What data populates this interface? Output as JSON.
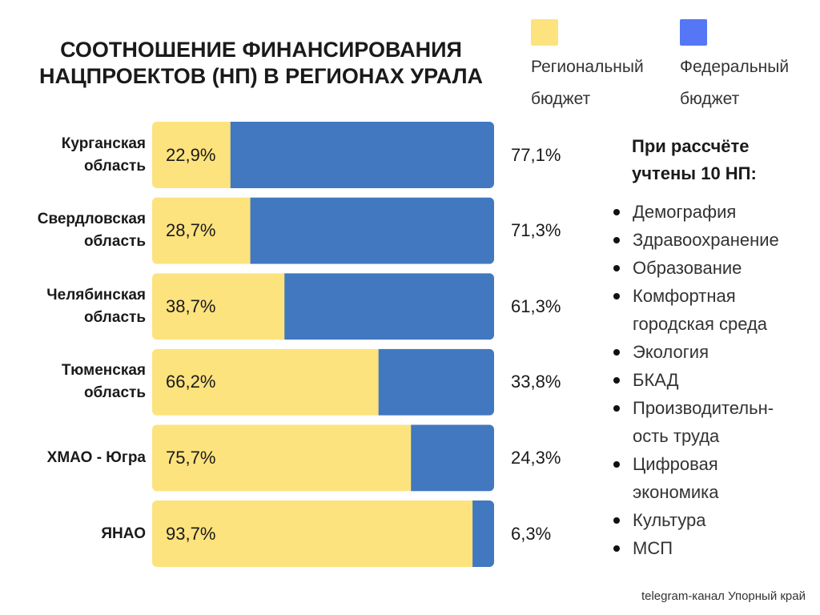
{
  "chart_data": {
    "type": "stacked_bar_horizontal",
    "title": "СООТНОШЕНИЕ ФИНАНСИРОВАНИЯ\nНАЦПРОЕКТОВ (НП) В РЕГИОНАХ УРАЛА",
    "categories": [
      "Курганская\nобласть",
      "Свердловская\nобласть",
      "Челябинская\nобласть",
      "Тюменская\nобласть",
      "ХМАО - Югра",
      "ЯНАО"
    ],
    "series": [
      {
        "name": "Региональный\nбюджет",
        "color": "#fde37e",
        "values": [
          22.9,
          28.7,
          38.7,
          66.2,
          75.7,
          93.7
        ],
        "value_labels": [
          "22,9%",
          "28,7%",
          "38,7%",
          "66,2%",
          "75,7%",
          "93,7%"
        ]
      },
      {
        "name": "Федеральный\nбюджет",
        "color": "#4178c0",
        "values": [
          77.1,
          71.3,
          61.3,
          33.8,
          24.3,
          6.3
        ],
        "value_labels": [
          "77,1%",
          "71,3%",
          "61,3%",
          "33,8%",
          "24,3%",
          "6,3%"
        ]
      }
    ],
    "legend_swatch_colors": [
      "#fde37e",
      "#5577f6"
    ],
    "note": {
      "title": "При рассчёте\nучтены 10 НП:",
      "items": [
        "Демография",
        "Здравоохранение",
        "Образование",
        "Комфортная\nгородская среда",
        "Экология",
        "БКАД",
        "Производительн-\nость труда",
        "Цифровая\nэкономика",
        "Культура",
        "МСП"
      ]
    },
    "source": "telegram-канал Упорный край"
  }
}
